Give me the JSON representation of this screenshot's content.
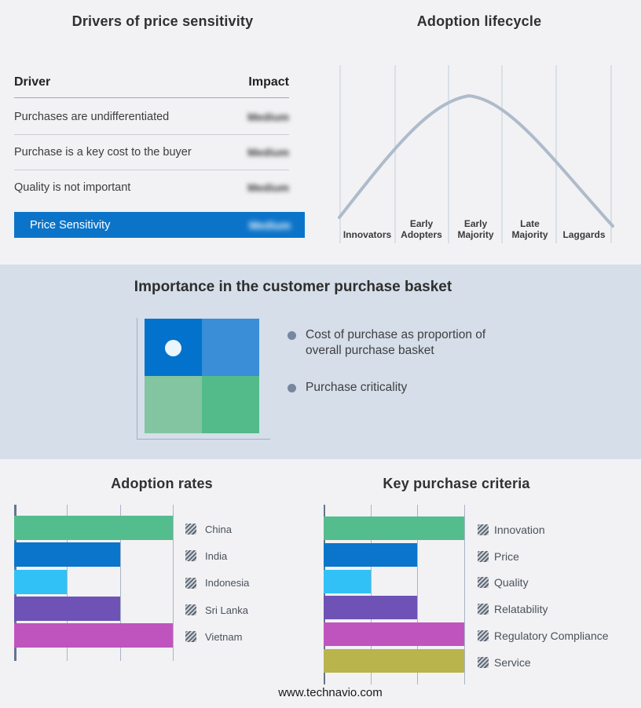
{
  "page": {
    "background_color": "#f2f2f4",
    "band_background_color": "#d5dee9",
    "footer": "www.technavio.com"
  },
  "drivers_table": {
    "title": "Drivers of price sensitivity",
    "columns": [
      "Driver",
      "Impact"
    ],
    "rows": [
      {
        "driver": "Purchases are undifferentiated",
        "impact": "Medium",
        "impact_redacted": true
      },
      {
        "driver": "Purchase is a key cost to the buyer",
        "impact": "Medium",
        "impact_redacted": true
      },
      {
        "driver": "Quality is not important",
        "impact": "Medium",
        "impact_redacted": true
      }
    ],
    "summary_row": {
      "label": "Price Sensitivity",
      "impact": "Medium",
      "impact_redacted": true,
      "highlight_color": "#0b74c9"
    }
  },
  "purchase_basket": {
    "title": "Importance in the customer purchase basket",
    "bullets": [
      "Cost of purchase as proportion of overall purchase basket",
      "Purchase criticality"
    ],
    "bullet_color": "#76879f",
    "quadrant_colors": {
      "top_left": "#0272cd",
      "top_right": "#398ed7",
      "bottom_left": "#82c5a0",
      "bottom_right": "#52bb89"
    },
    "marker_quadrant": "top_left"
  },
  "chart_data": [
    {
      "type": "bar",
      "orientation": "horizontal",
      "title": "Adoption rates",
      "categories": [
        "China",
        "India",
        "Indonesia",
        "Sri Lanka",
        "Vietnam"
      ],
      "values": [
        3,
        2,
        1,
        2,
        3
      ],
      "xlim": [
        0,
        3.15
      ],
      "gridlines_at": [
        1,
        2,
        3
      ],
      "tick_labels": "none",
      "colors": [
        "#54bd8e",
        "#0b75cb",
        "#31c1f6",
        "#6e52b5",
        "#c054be"
      ],
      "legend_position": "right",
      "legend_swatch_style": "hatched"
    },
    {
      "type": "bar",
      "orientation": "horizontal",
      "title": "Key purchase criteria",
      "categories": [
        "Innovation",
        "Price",
        "Quality",
        "Relatability",
        "Regulatory Compliance",
        "Service"
      ],
      "values": [
        3,
        2,
        1,
        2,
        3,
        3
      ],
      "xlim": [
        0,
        3.15
      ],
      "gridlines_at": [
        1,
        2,
        3
      ],
      "tick_labels": "none",
      "colors": [
        "#54bd8e",
        "#0b75cb",
        "#31c1f6",
        "#6e52b5",
        "#c054be",
        "#b9b44b"
      ],
      "legend_position": "right",
      "legend_swatch_style": "hatched"
    },
    {
      "type": "line",
      "title": "Adoption lifecycle",
      "categories": [
        "Innovators",
        "Early Adopters",
        "Early Majority",
        "Late Majority",
        "Laggards"
      ],
      "description": "stylized bell curve peaking at Early Majority",
      "curve_color": "#aebbcb",
      "gridline_color": "#c3cdd9"
    }
  ]
}
